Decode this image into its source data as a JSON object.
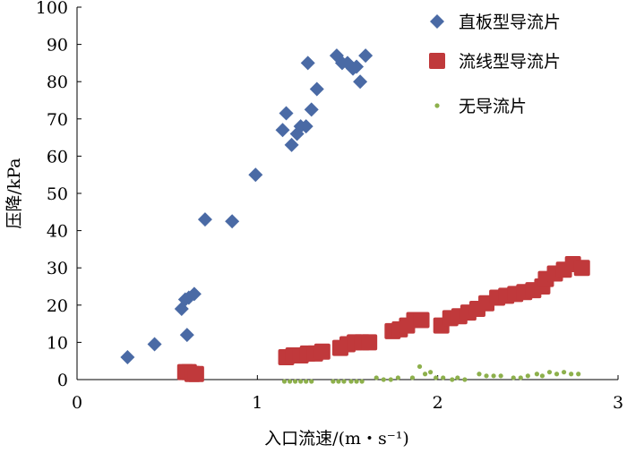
{
  "chart_data": {
    "type": "scatter",
    "xlabel": "入口流速/(m・s⁻¹)",
    "ylabel": "压降/kPa",
    "xlim": [
      0,
      3
    ],
    "ylim": [
      0,
      100
    ],
    "x_ticks": [
      "0",
      "1",
      "2",
      "3"
    ],
    "y_ticks": [
      "0",
      "10",
      "20",
      "30",
      "40",
      "50",
      "60",
      "70",
      "80",
      "90",
      "100"
    ],
    "grid": false,
    "legend_position": "top-right",
    "series": [
      {
        "name": "直板型导流片",
        "marker": "diamond",
        "color": "#4a6aa5",
        "points": [
          [
            0.28,
            6
          ],
          [
            0.43,
            9.5
          ],
          [
            0.58,
            19
          ],
          [
            0.6,
            21.5
          ],
          [
            0.61,
            12
          ],
          [
            0.62,
            22
          ],
          [
            0.65,
            23
          ],
          [
            0.71,
            43
          ],
          [
            0.86,
            42.5
          ],
          [
            0.99,
            55
          ],
          [
            1.14,
            67
          ],
          [
            1.16,
            71.5
          ],
          [
            1.19,
            63
          ],
          [
            1.22,
            66
          ],
          [
            1.24,
            68
          ],
          [
            1.27,
            68
          ],
          [
            1.28,
            85
          ],
          [
            1.3,
            72.5
          ],
          [
            1.33,
            78
          ],
          [
            1.44,
            87
          ],
          [
            1.47,
            85
          ],
          [
            1.5,
            85
          ],
          [
            1.53,
            83.5
          ],
          [
            1.55,
            84
          ],
          [
            1.57,
            80
          ],
          [
            1.6,
            87
          ]
        ]
      },
      {
        "name": "流线型导流片",
        "marker": "square",
        "color": "#c0393b",
        "points": [
          [
            0.6,
            2
          ],
          [
            0.62,
            2
          ],
          [
            0.64,
            1.5
          ],
          [
            0.66,
            1.5
          ],
          [
            1.16,
            6
          ],
          [
            1.2,
            6.5
          ],
          [
            1.24,
            6.5
          ],
          [
            1.28,
            7
          ],
          [
            1.32,
            7
          ],
          [
            1.36,
            7.5
          ],
          [
            1.46,
            8.5
          ],
          [
            1.5,
            9.5
          ],
          [
            1.54,
            10
          ],
          [
            1.58,
            10
          ],
          [
            1.62,
            10
          ],
          [
            1.75,
            13
          ],
          [
            1.79,
            13.5
          ],
          [
            1.83,
            14.5
          ],
          [
            1.87,
            16
          ],
          [
            1.91,
            16
          ],
          [
            2.02,
            14.5
          ],
          [
            2.07,
            16.5
          ],
          [
            2.12,
            17
          ],
          [
            2.17,
            18
          ],
          [
            2.22,
            19
          ],
          [
            2.27,
            20.5
          ],
          [
            2.33,
            22
          ],
          [
            2.38,
            22.5
          ],
          [
            2.43,
            23
          ],
          [
            2.48,
            23.5
          ],
          [
            2.53,
            24
          ],
          [
            2.58,
            25
          ],
          [
            2.6,
            27
          ],
          [
            2.65,
            28.5
          ],
          [
            2.7,
            29.5
          ],
          [
            2.75,
            31
          ],
          [
            2.8,
            30
          ]
        ]
      },
      {
        "name": "无导流片",
        "marker": "dot",
        "color": "#8db04c",
        "points": [
          [
            1.15,
            -0.5
          ],
          [
            1.18,
            -0.5
          ],
          [
            1.21,
            -0.5
          ],
          [
            1.24,
            -0.5
          ],
          [
            1.27,
            -0.5
          ],
          [
            1.3,
            -0.5
          ],
          [
            1.42,
            -0.5
          ],
          [
            1.45,
            -0.5
          ],
          [
            1.48,
            -0.5
          ],
          [
            1.52,
            -0.5
          ],
          [
            1.55,
            -0.5
          ],
          [
            1.58,
            -0.5
          ],
          [
            1.66,
            0.5
          ],
          [
            1.7,
            0
          ],
          [
            1.74,
            0
          ],
          [
            1.78,
            0.5
          ],
          [
            1.86,
            0.5
          ],
          [
            1.9,
            3.5
          ],
          [
            1.93,
            1.5
          ],
          [
            1.96,
            2
          ],
          [
            1.99,
            0.5
          ],
          [
            2.03,
            0.5
          ],
          [
            2.08,
            0
          ],
          [
            2.11,
            0.5
          ],
          [
            2.15,
            0
          ],
          [
            2.23,
            1.5
          ],
          [
            2.27,
            1
          ],
          [
            2.31,
            1
          ],
          [
            2.35,
            1
          ],
          [
            2.42,
            0.5
          ],
          [
            2.46,
            0.5
          ],
          [
            2.5,
            1
          ],
          [
            2.55,
            1.5
          ],
          [
            2.58,
            1
          ],
          [
            2.62,
            2
          ],
          [
            2.66,
            1.5
          ],
          [
            2.7,
            2
          ],
          [
            2.74,
            1.5
          ],
          [
            2.78,
            1.5
          ]
        ]
      }
    ]
  }
}
